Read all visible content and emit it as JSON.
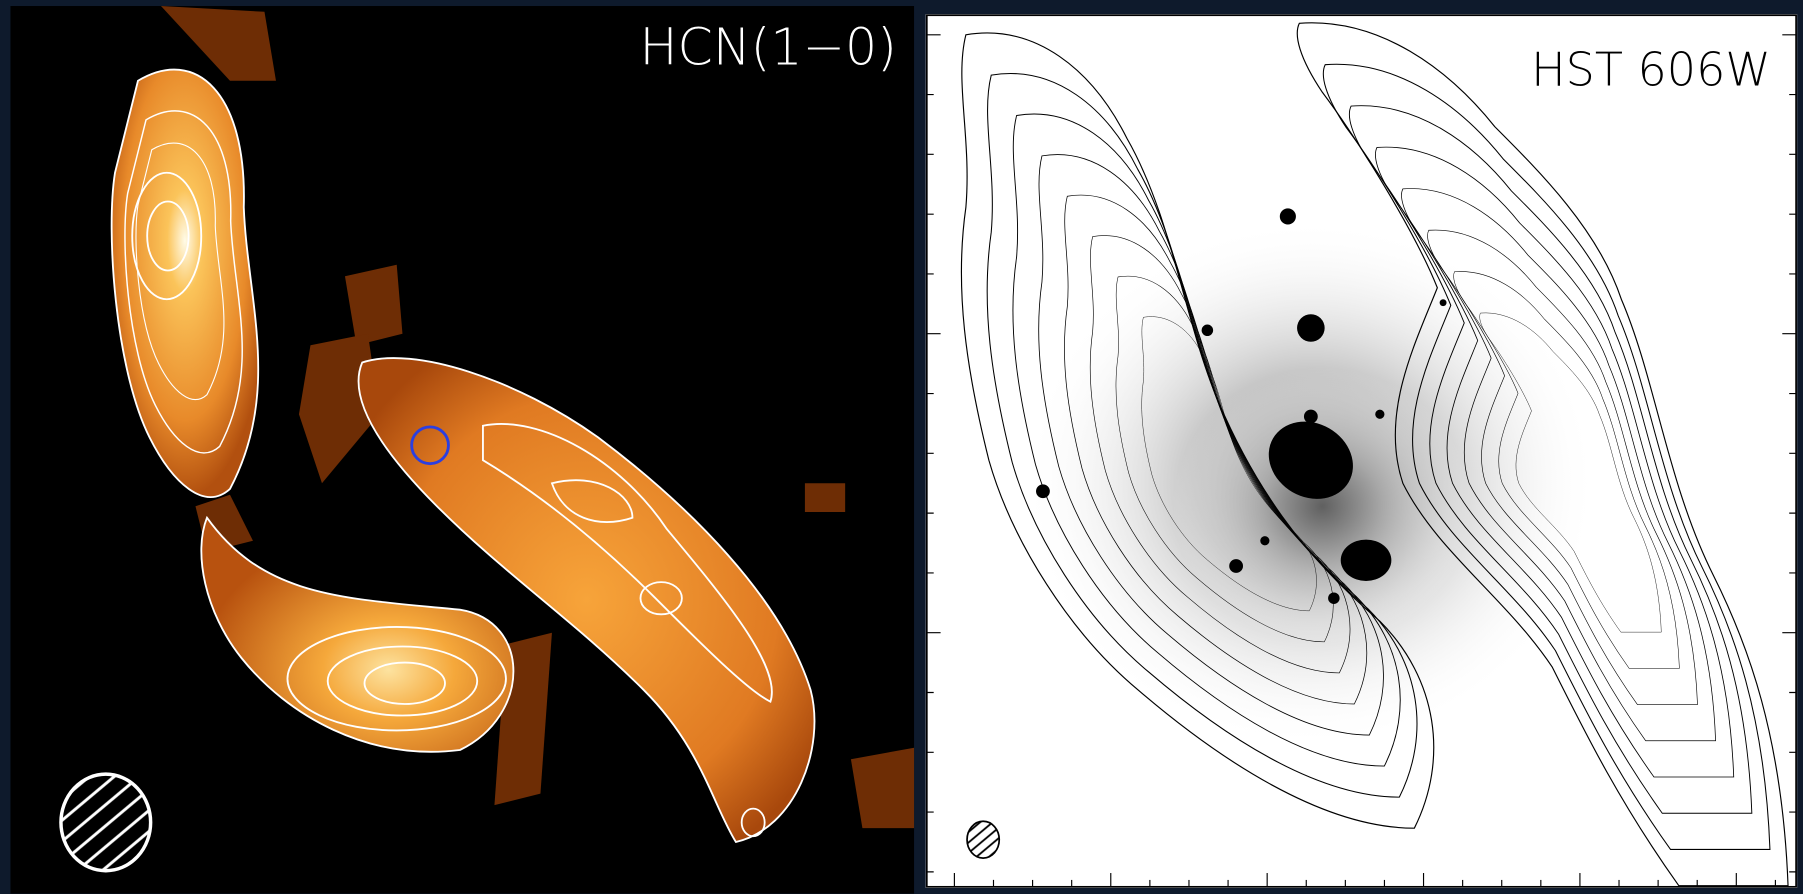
{
  "panels": [
    {
      "label": "HCN(1−0)"
    },
    {
      "label": "HST 606W"
    }
  ]
}
